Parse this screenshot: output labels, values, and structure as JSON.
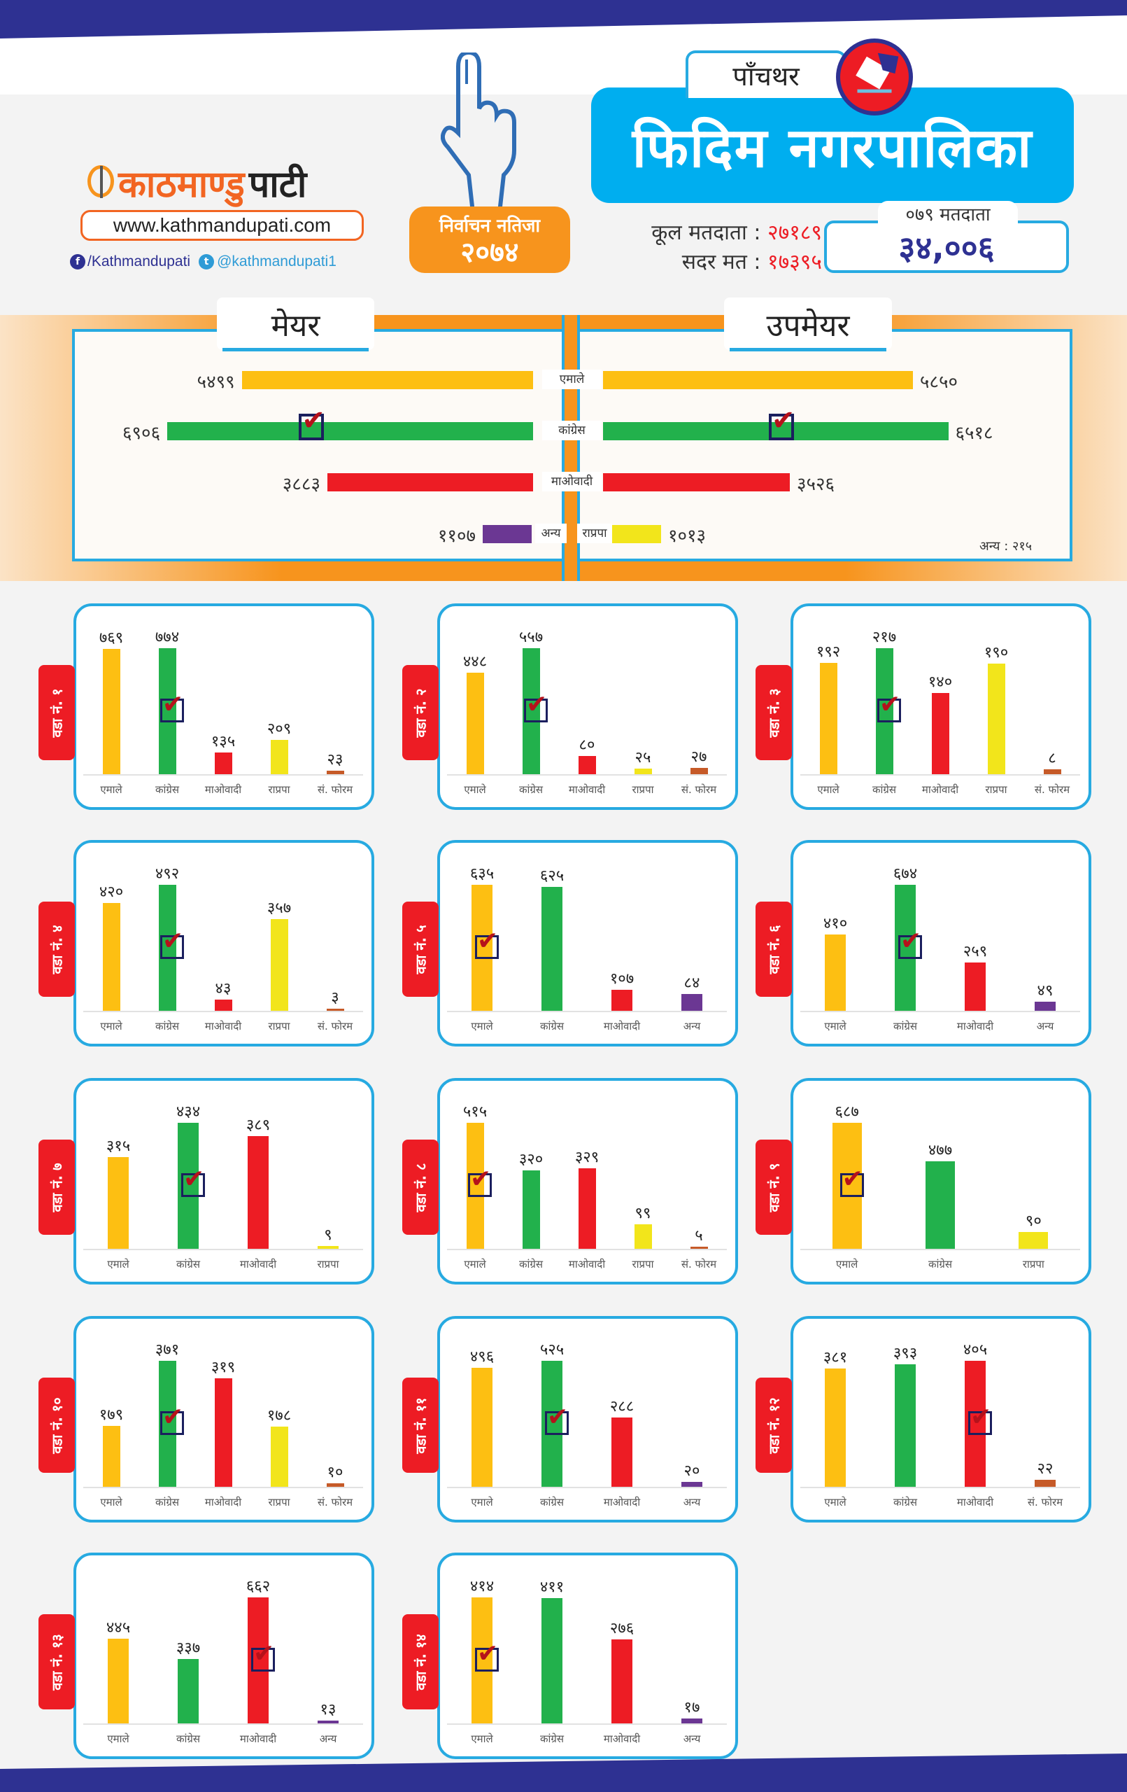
{
  "brand": {
    "logo_part1": "काठमाण्डु",
    "logo_part2": "पाटी",
    "website": "www.kathmandupati.com",
    "facebook": "/Kathmandupati",
    "twitter": "@kathmandupati1"
  },
  "badge": {
    "line1": "निर्वाचन नतिजा",
    "line2": "२०७४"
  },
  "district": "पाँचथर",
  "municipality": "फिदिम नगरपालिका",
  "stats": {
    "total_voters_label": "कूल मतदाता :",
    "total_voters_value": "२७१८९",
    "valid_votes_label": "सदर मत :",
    "valid_votes_value": "१७३९५",
    "voters_079_label": "०७९ मतदाता",
    "voters_079_value": "३४,००६"
  },
  "colors": {
    "emale": "#fdbf12",
    "congress": "#22b14c",
    "maoist": "#ed1c24",
    "rpp": "#f2e51b",
    "forum": "#c65a28",
    "other": "#6b3793",
    "accent_blue": "#27aae1",
    "accent_orange": "#f7941d",
    "navy": "#2e3192"
  },
  "chart_data": [
    {
      "type": "bar",
      "title": "मेयर",
      "orientation": "horizontal",
      "categories": [
        "एमाले",
        "कांग्रेस",
        "माओवादी",
        "अन्य"
      ],
      "values": [
        5499,
        6906,
        3883,
        1107
      ],
      "labels": [
        "५४९९",
        "६९०६",
        "३८८३",
        "११०७"
      ],
      "winner": "कांग्रेस"
    },
    {
      "type": "bar",
      "title": "उपमेयर",
      "orientation": "horizontal",
      "categories": [
        "एमाले",
        "कांग्रेस",
        "माओवादी",
        "राप्रपा"
      ],
      "values": [
        5850,
        6518,
        3526,
        1013
      ],
      "labels": [
        "५८५०",
        "६५१८",
        "३५२६",
        "१०१३"
      ],
      "winner": "कांग्रेस",
      "note": "अन्य : २१५"
    },
    {
      "type": "bar",
      "title": "वडा नं. १",
      "categories": [
        "एमाले",
        "कांग्रेस",
        "माओवादी",
        "राप्रपा",
        "सं. फोरम"
      ],
      "values": [
        769,
        774,
        135,
        209,
        23
      ],
      "labels": [
        "७६९",
        "७७४",
        "१३५",
        "२०९",
        "२३"
      ],
      "winner": "कांग्रेस"
    },
    {
      "type": "bar",
      "title": "वडा नं. २",
      "categories": [
        "एमाले",
        "कांग्रेस",
        "माओवादी",
        "राप्रपा",
        "सं. फोरम"
      ],
      "values": [
        448,
        557,
        80,
        25,
        27
      ],
      "labels": [
        "४४८",
        "५५७",
        "८०",
        "२५",
        "२७"
      ],
      "winner": "कांग्रेस"
    },
    {
      "type": "bar",
      "title": "वडा नं. ३",
      "categories": [
        "एमाले",
        "कांग्रेस",
        "माओवादी",
        "राप्रपा",
        "सं. फोरम"
      ],
      "values": [
        192,
        217,
        140,
        190,
        8
      ],
      "labels": [
        "१९२",
        "२१७",
        "१४०",
        "१९०",
        "८"
      ],
      "winner": "कांग्रेस"
    },
    {
      "type": "bar",
      "title": "वडा नं. ४",
      "categories": [
        "एमाले",
        "कांग्रेस",
        "माओवादी",
        "राप्रपा",
        "सं. फोरम"
      ],
      "values": [
        420,
        492,
        43,
        357,
        3
      ],
      "labels": [
        "४२०",
        "४९२",
        "४३",
        "३५७",
        "३"
      ],
      "winner": "कांग्रेस"
    },
    {
      "type": "bar",
      "title": "वडा नं. ५",
      "categories": [
        "एमाले",
        "कांग्रेस",
        "माओवादी",
        "अन्य"
      ],
      "values": [
        635,
        625,
        107,
        84
      ],
      "labels": [
        "६३५",
        "६२५",
        "१०७",
        "८४"
      ],
      "winner": "एमाले"
    },
    {
      "type": "bar",
      "title": "वडा नं. ६",
      "categories": [
        "एमाले",
        "कांग्रेस",
        "माओवादी",
        "अन्य"
      ],
      "values": [
        410,
        674,
        259,
        49
      ],
      "labels": [
        "४१०",
        "६७४",
        "२५९",
        "४९"
      ],
      "winner": "कांग्रेस"
    },
    {
      "type": "bar",
      "title": "वडा नं. ७",
      "categories": [
        "एमाले",
        "कांग्रेस",
        "माओवादी",
        "राप्रपा"
      ],
      "values": [
        315,
        434,
        389,
        9
      ],
      "labels": [
        "३१५",
        "४३४",
        "३८९",
        "९"
      ],
      "winner": "कांग्रेस"
    },
    {
      "type": "bar",
      "title": "वडा नं. ८",
      "categories": [
        "एमाले",
        "कांग्रेस",
        "माओवादी",
        "राप्रपा",
        "सं. फोरम"
      ],
      "values": [
        515,
        320,
        329,
        99,
        5
      ],
      "labels": [
        "५१५",
        "३२०",
        "३२९",
        "९९",
        "५"
      ],
      "winner": "एमाले"
    },
    {
      "type": "bar",
      "title": "वडा नं. ९",
      "categories": [
        "एमाले",
        "कांग्रेस",
        "राप्रपा"
      ],
      "values": [
        687,
        477,
        90
      ],
      "labels": [
        "६८७",
        "४७७",
        "९०"
      ],
      "winner": "एमाले"
    },
    {
      "type": "bar",
      "title": "वडा नं. १०",
      "categories": [
        "एमाले",
        "कांग्रेस",
        "माओवादी",
        "राप्रपा",
        "सं. फोरम"
      ],
      "values": [
        179,
        371,
        319,
        178,
        10
      ],
      "labels": [
        "१७९",
        "३७१",
        "३१९",
        "१७८",
        "१०"
      ],
      "winner": "कांग्रेस"
    },
    {
      "type": "bar",
      "title": "वडा नं. ११",
      "categories": [
        "एमाले",
        "कांग्रेस",
        "माओवादी",
        "अन्य"
      ],
      "values": [
        496,
        525,
        288,
        20
      ],
      "labels": [
        "४९६",
        "५२५",
        "२८८",
        "२०"
      ],
      "winner": "कांग्रेस"
    },
    {
      "type": "bar",
      "title": "वडा नं. १२",
      "categories": [
        "एमाले",
        "कांग्रेस",
        "माओवादी",
        "सं. फोरम"
      ],
      "values": [
        381,
        393,
        405,
        22
      ],
      "labels": [
        "३८१",
        "३९३",
        "४०५",
        "२२"
      ],
      "winner": "माओवादी"
    },
    {
      "type": "bar",
      "title": "वडा नं. १३",
      "categories": [
        "एमाले",
        "कांग्रेस",
        "माओवादी",
        "अन्य"
      ],
      "values": [
        445,
        337,
        662,
        13
      ],
      "labels": [
        "४४५",
        "३३७",
        "६६२",
        "१३"
      ],
      "winner": "माओवादी"
    },
    {
      "type": "bar",
      "title": "वडा नं. १४",
      "categories": [
        "एमाले",
        "कांग्रेस",
        "माओवादी",
        "अन्य"
      ],
      "values": [
        414,
        411,
        276,
        17
      ],
      "labels": [
        "४१४",
        "४११",
        "२७६",
        "१७"
      ],
      "winner": "एमाले"
    }
  ]
}
